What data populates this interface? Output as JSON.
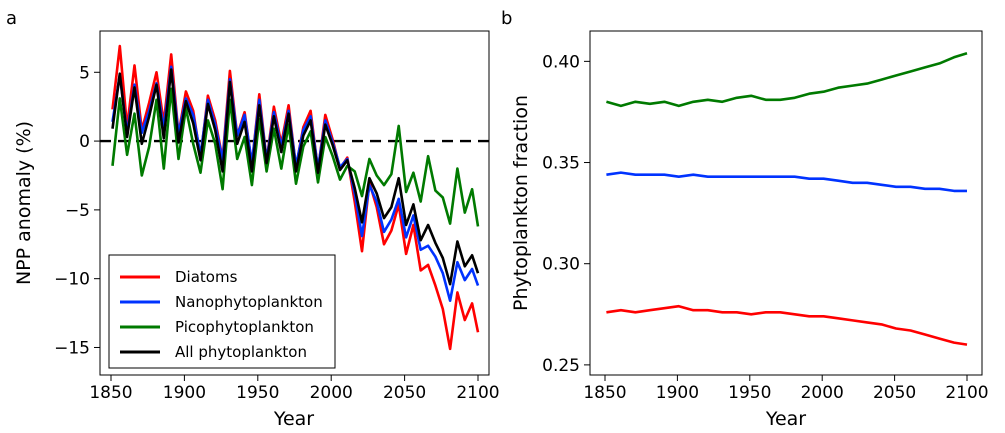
{
  "chart_data": [
    {
      "panel_label": "a",
      "type": "line",
      "xlabel": "Year",
      "ylabel": "NPP anomaly (%)",
      "xlim": [
        1850,
        2100
      ],
      "ylim": [
        -17,
        8
      ],
      "xticks": [
        "1850",
        "1900",
        "1950",
        "2000",
        "2050",
        "2100"
      ],
      "yticks": [
        "5",
        "0",
        "−5",
        "−10",
        "−15"
      ],
      "reference_line": {
        "y": 0,
        "style": "dashed"
      },
      "legend_position": "lower-left",
      "series": [
        {
          "name": "Diatoms",
          "color": "#ff0000",
          "x": [
            1851,
            1856,
            1861,
            1866,
            1871,
            1876,
            1881,
            1886,
            1891,
            1896,
            1901,
            1906,
            1911,
            1916,
            1921,
            1926,
            1931,
            1936,
            1941,
            1946,
            1951,
            1956,
            1961,
            1966,
            1971,
            1976,
            1981,
            1986,
            1991,
            1996,
            2001,
            2006,
            2011,
            2016,
            2021,
            2026,
            2031,
            2036,
            2041,
            2046,
            2051,
            2056,
            2061,
            2066,
            2071,
            2076,
            2081,
            2086,
            2091,
            2096,
            2100
          ],
          "values": [
            2.3,
            6.9,
            1.0,
            5.5,
            0.8,
            2.8,
            5.0,
            1.3,
            6.3,
            0.5,
            3.6,
            2.2,
            -1.2,
            3.3,
            1.5,
            -1.3,
            5.1,
            0.4,
            2.1,
            -1.7,
            3.4,
            -1.4,
            2.5,
            -0.2,
            2.6,
            -1.9,
            1.0,
            2.2,
            -2.1,
            1.9,
            0.1,
            -2.0,
            -1.2,
            -4.4,
            -8.0,
            -3.0,
            -4.8,
            -7.5,
            -6.5,
            -4.6,
            -8.2,
            -6.1,
            -9.4,
            -9.0,
            -10.5,
            -12.2,
            -15.1,
            -11.0,
            -13.0,
            -11.8,
            -13.9
          ]
        },
        {
          "name": "Nanophytoplankton",
          "color": "#0033ff",
          "x": [
            1851,
            1856,
            1861,
            1866,
            1871,
            1876,
            1881,
            1886,
            1891,
            1896,
            1901,
            1906,
            1911,
            1916,
            1921,
            1926,
            1931,
            1936,
            1941,
            1946,
            1951,
            1956,
            1961,
            1966,
            1971,
            1976,
            1981,
            1986,
            1991,
            1996,
            2001,
            2006,
            2011,
            2016,
            2021,
            2026,
            2031,
            2036,
            2041,
            2046,
            2051,
            2056,
            2061,
            2066,
            2071,
            2076,
            2081,
            2086,
            2091,
            2096,
            2100
          ],
          "values": [
            1.4,
            4.8,
            0.6,
            4.1,
            0.6,
            2.2,
            4.2,
            0.9,
            5.4,
            0.5,
            3.1,
            1.9,
            -1.0,
            3.0,
            1.2,
            -1.4,
            4.5,
            0.4,
            1.9,
            -1.6,
            3.0,
            -1.4,
            2.1,
            -0.4,
            2.2,
            -1.8,
            0.8,
            1.8,
            -2.0,
            1.5,
            -0.1,
            -1.9,
            -1.3,
            -3.8,
            -6.9,
            -3.2,
            -4.4,
            -6.6,
            -5.7,
            -4.2,
            -7.0,
            -5.4,
            -7.9,
            -7.6,
            -8.4,
            -9.6,
            -11.6,
            -8.8,
            -10.1,
            -9.3,
            -10.5
          ]
        },
        {
          "name": "Picophytoplankton",
          "color": "#007a00",
          "x": [
            1851,
            1856,
            1861,
            1866,
            1871,
            1876,
            1881,
            1886,
            1891,
            1896,
            1901,
            1906,
            1911,
            1916,
            1921,
            1926,
            1931,
            1936,
            1941,
            1946,
            1951,
            1956,
            1961,
            1966,
            1971,
            1976,
            1981,
            1986,
            1991,
            1996,
            2001,
            2006,
            2011,
            2016,
            2021,
            2026,
            2031,
            2036,
            2041,
            2046,
            2051,
            2056,
            2061,
            2066,
            2071,
            2076,
            2081,
            2086,
            2091,
            2096,
            2100
          ],
          "values": [
            -1.8,
            3.1,
            -1.0,
            2.0,
            -2.5,
            -0.4,
            3.0,
            -2.0,
            3.8,
            -1.3,
            2.4,
            -0.2,
            -2.3,
            1.5,
            -0.2,
            -3.5,
            3.0,
            -1.3,
            0.3,
            -3.2,
            1.6,
            -2.2,
            0.9,
            -2.0,
            1.2,
            -3.1,
            -0.4,
            0.7,
            -3.0,
            0.3,
            -1.1,
            -2.8,
            -1.8,
            -2.2,
            -4.0,
            -1.3,
            -2.5,
            -3.2,
            -2.4,
            1.1,
            -3.7,
            -2.3,
            -4.4,
            -1.1,
            -3.6,
            -4.1,
            -6.0,
            -2.0,
            -5.2,
            -3.5,
            -6.2
          ]
        },
        {
          "name": "All phytoplankton",
          "color": "#000000",
          "x": [
            1851,
            1856,
            1861,
            1866,
            1871,
            1876,
            1881,
            1886,
            1891,
            1896,
            1901,
            1906,
            1911,
            1916,
            1921,
            1926,
            1931,
            1936,
            1941,
            1946,
            1951,
            1956,
            1961,
            1966,
            1971,
            1976,
            1981,
            1986,
            1991,
            1996,
            2001,
            2006,
            2011,
            2016,
            2021,
            2026,
            2031,
            2036,
            2041,
            2046,
            2051,
            2056,
            2061,
            2066,
            2071,
            2076,
            2081,
            2086,
            2091,
            2096,
            2100
          ],
          "values": [
            0.9,
            4.9,
            0.3,
            3.9,
            -0.2,
            1.8,
            4.1,
            0.2,
            5.2,
            -0.1,
            2.9,
            1.3,
            -1.4,
            2.7,
            0.8,
            -2.2,
            4.3,
            -0.2,
            1.4,
            -2.2,
            2.6,
            -1.6,
            1.8,
            -0.8,
            2.0,
            -2.2,
            0.4,
            1.5,
            -2.3,
            1.2,
            -0.3,
            -2.1,
            -1.4,
            -3.4,
            -5.9,
            -2.7,
            -3.8,
            -5.6,
            -4.8,
            -2.7,
            -6.1,
            -4.6,
            -7.2,
            -6.1,
            -7.4,
            -8.5,
            -10.4,
            -7.3,
            -9.1,
            -8.3,
            -9.6
          ]
        }
      ]
    },
    {
      "panel_label": "b",
      "type": "line",
      "xlabel": "Year",
      "ylabel": "Phytoplankton fraction",
      "xlim": [
        1850,
        2100
      ],
      "ylim": [
        0.245,
        0.415
      ],
      "xticks": [
        "1850",
        "1900",
        "1950",
        "2000",
        "2050",
        "2100"
      ],
      "yticks": [
        "0.25",
        "0.30",
        "0.35",
        "0.40"
      ],
      "series": [
        {
          "color": "#007a00",
          "x": [
            1851,
            1861,
            1871,
            1881,
            1891,
            1901,
            1911,
            1921,
            1931,
            1941,
            1951,
            1961,
            1971,
            1981,
            1991,
            2001,
            2011,
            2021,
            2031,
            2041,
            2051,
            2061,
            2071,
            2081,
            2091,
            2100
          ],
          "values": [
            0.38,
            0.378,
            0.38,
            0.379,
            0.38,
            0.378,
            0.38,
            0.381,
            0.38,
            0.382,
            0.383,
            0.381,
            0.381,
            0.382,
            0.384,
            0.385,
            0.387,
            0.388,
            0.389,
            0.391,
            0.393,
            0.395,
            0.397,
            0.399,
            0.402,
            0.404
          ]
        },
        {
          "color": "#0033ff",
          "x": [
            1851,
            1861,
            1871,
            1881,
            1891,
            1901,
            1911,
            1921,
            1931,
            1941,
            1951,
            1961,
            1971,
            1981,
            1991,
            2001,
            2011,
            2021,
            2031,
            2041,
            2051,
            2061,
            2071,
            2081,
            2091,
            2100
          ],
          "values": [
            0.344,
            0.345,
            0.344,
            0.344,
            0.344,
            0.343,
            0.344,
            0.343,
            0.343,
            0.343,
            0.343,
            0.343,
            0.343,
            0.343,
            0.342,
            0.342,
            0.341,
            0.34,
            0.34,
            0.339,
            0.338,
            0.338,
            0.337,
            0.337,
            0.336,
            0.336
          ]
        },
        {
          "color": "#ff0000",
          "x": [
            1851,
            1861,
            1871,
            1881,
            1891,
            1901,
            1911,
            1921,
            1931,
            1941,
            1951,
            1961,
            1971,
            1981,
            1991,
            2001,
            2011,
            2021,
            2031,
            2041,
            2051,
            2061,
            2071,
            2081,
            2091,
            2100
          ],
          "values": [
            0.276,
            0.277,
            0.276,
            0.277,
            0.278,
            0.279,
            0.277,
            0.277,
            0.276,
            0.276,
            0.275,
            0.276,
            0.276,
            0.275,
            0.274,
            0.274,
            0.273,
            0.272,
            0.271,
            0.27,
            0.268,
            0.267,
            0.265,
            0.263,
            0.261,
            0.26
          ]
        }
      ]
    }
  ]
}
